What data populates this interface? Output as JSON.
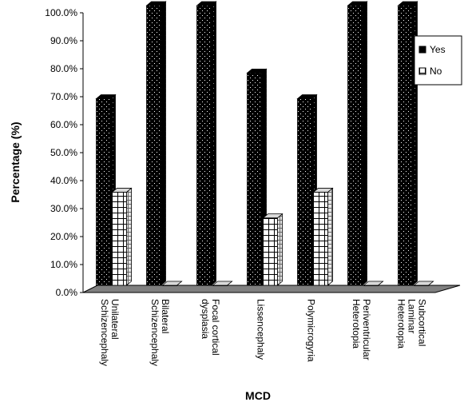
{
  "chart_data": {
    "type": "bar",
    "categories": [
      [
        "Unilateral",
        "Schizencephaly"
      ],
      [
        "Bilateral",
        "Schizencephaly"
      ],
      [
        "Focal cortical",
        "dysplasia"
      ],
      [
        "Lissencephaly"
      ],
      [
        "Polymicrogyria"
      ],
      [
        "Periventricular",
        "Heterotopia"
      ],
      [
        "Subcortical",
        "Laminar",
        "Heterotopia"
      ]
    ],
    "series": [
      {
        "name": "Yes",
        "values": [
          66.7,
          100,
          100,
          75.9,
          66.7,
          100,
          100
        ],
        "color": "#000000"
      },
      {
        "name": "No",
        "values": [
          33.3,
          0,
          0,
          24.1,
          33.3,
          0,
          0
        ],
        "color": "#ffffff"
      }
    ],
    "xlabel": "MCD",
    "ylabel": "Percentage (%)",
    "ylim": [
      0,
      100
    ],
    "yticks": [
      "0.0%",
      "10.0%",
      "20.0%",
      "30.0%",
      "40.0%",
      "50.0%",
      "60.0%",
      "70.0%",
      "80.0%",
      "90.0%",
      "100.0%"
    ],
    "legend_position": "right",
    "style": "3d-clustered-column",
    "floor_color": "#808080"
  }
}
